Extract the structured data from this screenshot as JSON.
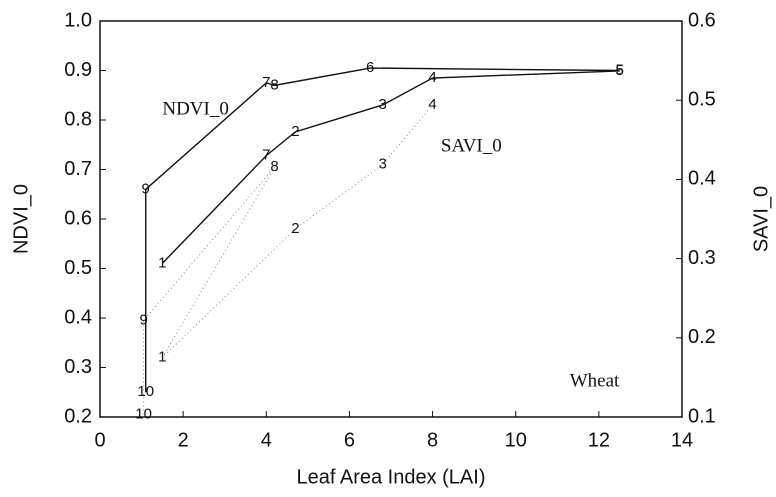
{
  "chart_data": {
    "type": "line",
    "xlabel": "Leaf Area Index (LAI)",
    "ylabel": "NDVI_0",
    "y2label": "SAVI_0",
    "xlim": [
      0,
      14
    ],
    "xticks": [
      0,
      2,
      4,
      6,
      8,
      10,
      12,
      14
    ],
    "ylim": [
      0.2,
      1
    ],
    "yticks": [
      0.2,
      0.3,
      0.4,
      0.5,
      0.6,
      0.7,
      0.8,
      0.9,
      {
        "value": 1,
        "label": "1.0"
      }
    ],
    "y2lim": [
      0.1,
      0.6
    ],
    "y2ticks": [
      0.1,
      0.2,
      0.3,
      0.4,
      0.5,
      0.6
    ],
    "annotations": [
      {
        "text": "NDVI_0",
        "x": 1.5,
        "y": 0.82
      },
      {
        "text": "SAVI_0",
        "x": 8.2,
        "y": 0.745
      },
      {
        "text": "Wheat",
        "x": 11.3,
        "y": 0.27
      }
    ],
    "series": [
      {
        "color": "#111111",
        "line": "solid",
        "x": [
          1.1,
          1.1,
          4.0,
          4.2,
          6.5,
          12.5
        ],
        "values": [
          0.25,
          0.66,
          0.875,
          0.87,
          0.905,
          0.9
        ],
        "labels": [
          "10",
          "9",
          "7",
          "8",
          "6",
          "5"
        ]
      },
      {
        "color": "#111111",
        "line": "solid",
        "axis": "y2",
        "x": [
          1.5,
          4.0,
          4.7,
          6.8,
          8.0,
          12.5
        ],
        "values": [
          0.294,
          0.43,
          0.46,
          0.494,
          0.528,
          0.537
        ],
        "labels": [
          "1",
          "7",
          "2",
          "3",
          "4",
          "5"
        ]
      },
      {
        "color": "#888888",
        "line": "dotted",
        "x": [
          1.05,
          1.05,
          4.2,
          1.5,
          4.7,
          6.8,
          8.0
        ],
        "values": [
          0.205,
          0.395,
          0.705,
          0.32,
          0.58,
          0.71,
          0.83
        ],
        "labels": [
          "10",
          "9",
          "8",
          "1",
          "2",
          "3",
          "4"
        ]
      }
    ]
  }
}
